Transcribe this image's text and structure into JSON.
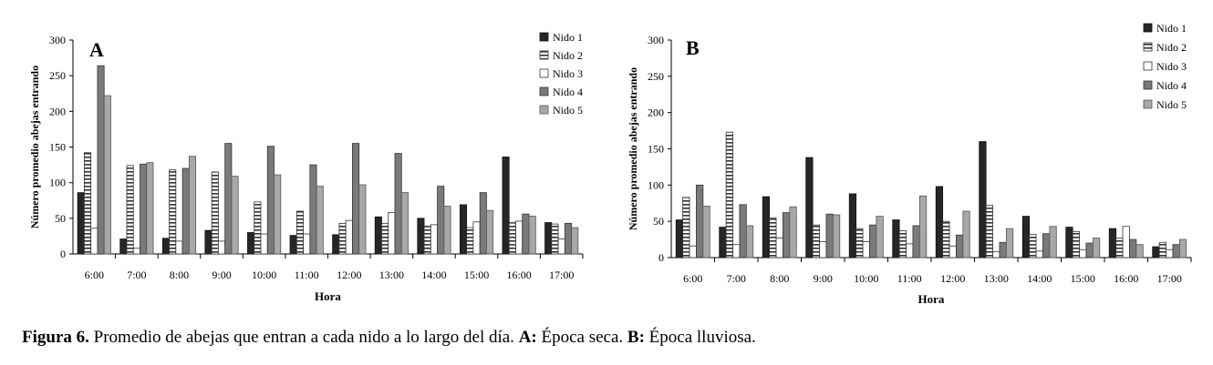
{
  "caption": {
    "figure_label": "Figura 6.",
    "text_1": " Promedio de abejas que entran a cada nido a lo largo del día. ",
    "a_label": "A:",
    "text_2": " Época seca. ",
    "b_label": "B:",
    "text_3": " Época lluviosa."
  },
  "colors": {
    "nido1": "#262626",
    "nido2_stripe": "#333333",
    "nido3_border": "#333333",
    "nido4": "#7a7a7a",
    "nido5": "#a8a8a8"
  },
  "chart_data": [
    {
      "type": "bar",
      "panel_label": "A",
      "categories": [
        "6:00",
        "7:00",
        "8:00",
        "9:00",
        "10:00",
        "11:00",
        "12:00",
        "13:00",
        "14:00",
        "15:00",
        "16:00",
        "17:00"
      ],
      "series": [
        {
          "name": "Nido 1",
          "pattern": "solid-dark",
          "values": [
            86,
            21,
            22,
            33,
            30,
            26,
            27,
            52,
            50,
            69,
            136,
            44
          ]
        },
        {
          "name": "Nido 2",
          "pattern": "horizontal-stripes",
          "values": [
            142,
            124,
            118,
            115,
            73,
            60,
            43,
            43,
            39,
            37,
            44,
            42
          ]
        },
        {
          "name": "Nido 3",
          "pattern": "white",
          "values": [
            36,
            8,
            18,
            18,
            28,
            28,
            47,
            58,
            41,
            45,
            46,
            21
          ]
        },
        {
          "name": "Nido 4",
          "pattern": "solid-mid",
          "values": [
            264,
            126,
            120,
            155,
            151,
            125,
            155,
            141,
            95,
            86,
            56,
            43
          ]
        },
        {
          "name": "Nido 5",
          "pattern": "solid-light",
          "values": [
            222,
            128,
            137,
            109,
            111,
            95,
            97,
            86,
            67,
            61,
            53,
            37
          ]
        }
      ],
      "xlabel": "Hora",
      "ylabel": "Número promedio abejas entrando",
      "ylim": [
        0,
        300
      ],
      "yticks": [
        0,
        50,
        100,
        150,
        200,
        250,
        300
      ],
      "grid": false,
      "legend_position": "top-right"
    },
    {
      "type": "bar",
      "panel_label": "B",
      "categories": [
        "6:00",
        "7:00",
        "8:00",
        "9:00",
        "10:00",
        "11:00",
        "12:00",
        "13:00",
        "14:00",
        "15:00",
        "16:00",
        "17:00"
      ],
      "series": [
        {
          "name": "Nido 1",
          "pattern": "solid-dark",
          "values": [
            52,
            42,
            84,
            138,
            88,
            52,
            98,
            160,
            57,
            42,
            40,
            15
          ]
        },
        {
          "name": "Nido 2",
          "pattern": "horizontal-stripes",
          "values": [
            83,
            173,
            55,
            45,
            40,
            37,
            50,
            72,
            32,
            36,
            27,
            21
          ]
        },
        {
          "name": "Nido 3",
          "pattern": "white",
          "values": [
            16,
            18,
            27,
            22,
            22,
            19,
            16,
            8,
            9,
            11,
            43,
            11
          ]
        },
        {
          "name": "Nido 4",
          "pattern": "solid-mid",
          "values": [
            100,
            73,
            62,
            60,
            45,
            44,
            31,
            21,
            33,
            20,
            25,
            18
          ]
        },
        {
          "name": "Nido 5",
          "pattern": "solid-light",
          "values": [
            71,
            44,
            70,
            59,
            57,
            85,
            64,
            40,
            43,
            27,
            18,
            25
          ]
        }
      ],
      "xlabel": "Hora",
      "ylabel": "Número promedio abejas entrando",
      "ylim": [
        0,
        300
      ],
      "yticks": [
        0,
        50,
        100,
        150,
        200,
        250,
        300
      ],
      "grid": false,
      "legend_position": "top-right"
    }
  ]
}
